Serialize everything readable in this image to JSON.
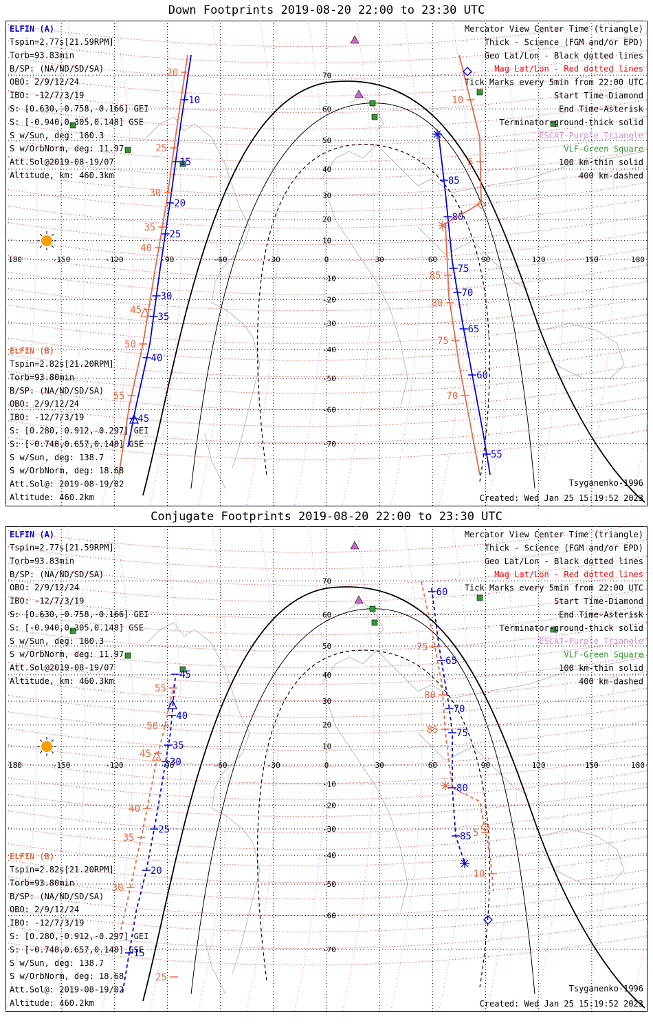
{
  "panels": [
    {
      "title": "Down Footprints 2019-08-20 22:00 to 23:30 UTC",
      "elfin_a": {
        "name": "ELFIN (A)",
        "lines": [
          "Tspin=2.77s[21.59RPM]",
          "Torb=93.83min",
          "B/SP: (NA/ND/SD/SA)",
          "OBO: 2/9/12/24",
          "IBO: -12/7/3/19",
          "S: [0.630,-0.758,-0.166] GEI",
          "S: [-0.940,0.305,0.148] GSE",
          "S w/Sun, deg: 160.3",
          "S w/OrbNorm, deg: 11.97",
          "Att.Sol@2019-08-19/07",
          "Altitude, km: 460.3km"
        ]
      },
      "elfin_b": {
        "name": "ELFIN (B)",
        "lines": [
          "Tspin=2.82s[21.20RPM]",
          "Torb=93.80min",
          "B/SP: (NA/ND/SD/SA)",
          "OBO: 2/9/12/24",
          "IBO: -12/7/3/19",
          "S: [0.280,-0.912,-0.297] GEI",
          "S: [-0.748,0.657,0.148] GSE",
          "S w/Sun, deg: 138.7",
          "S w/OrbNorm, deg: 18.68",
          "Att.Sol@: 2019-08-19/02",
          "Altitude: 460.2km"
        ]
      },
      "legend": [
        {
          "text": "Mercator View Center Time (triangle)",
          "color": "#000000"
        },
        {
          "text": "Thick - Science (FGM and/or EPD)",
          "color": "#000000"
        },
        {
          "text": "Geo Lat/Lon - Black dotted lines",
          "color": "#000000"
        },
        {
          "text": "Mag Lat/Lon - Red dotted lines",
          "color": "#ff0000"
        },
        {
          "text": "Tick Marks every 5min from 22:00 UTC",
          "color": "#000000"
        },
        {
          "text": "Start Time-Diamond",
          "color": "#000000"
        },
        {
          "text": "End Time-Asterisk",
          "color": "#000000"
        },
        {
          "text": "Terminator-ground-thick solid",
          "color": "#000000"
        },
        {
          "text": "ESCAT-Purple Triangle",
          "color": "#dd88dd"
        },
        {
          "text": "VLF-Green Square",
          "color": "#339933"
        },
        {
          "text": "100 km-thin solid",
          "color": "#000000"
        },
        {
          "text": "400 km-dashed",
          "color": "#000000"
        }
      ],
      "model": "Tsyganenko-1996",
      "created": "Created: Wed Jan 25 15:19:52 2023"
    },
    {
      "title": "Conjugate Footprints 2019-08-20 22:00 to 23:30 UTC",
      "elfin_a": {
        "name": "ELFIN (A)",
        "lines": [
          "Tspin=2.77s[21.59RPM]",
          "Torb=93.83min",
          "B/SP: (NA/ND/SD/SA)",
          "OBO: 2/9/12/24",
          "IBO: -12/7/3/19",
          "S: [0.630,-0.758,-0.166] GEI",
          "S: [-0.940,0.305,0.148] GSE",
          "S w/Sun, deg: 160.3",
          "S w/OrbNorm, deg: 11.97",
          "Att.Sol@2019-08-19/07",
          "Altitude, km: 460.3km"
        ]
      },
      "elfin_b": {
        "name": "ELFIN (B)",
        "lines": [
          "Tspin=2.82s[21.20RPM]",
          "Torb=93.80min",
          "B/SP: (NA/ND/SD/SA)",
          "OBO: 2/9/12/24",
          "IBO: -12/7/3/19",
          "S: [0.280,-0.912,-0.297] GEI",
          "S: [-0.748,0.657,0.148] GSE",
          "S w/Sun, deg: 138.7",
          "S w/OrbNorm, deg: 18.68",
          "Att.Sol@: 2019-08-19/02",
          "Altitude: 460.2km"
        ]
      },
      "legend": [
        {
          "text": "Mercator View Center Time (triangle)",
          "color": "#000000"
        },
        {
          "text": "Thick - Science (FGM and/or EPD)",
          "color": "#000000"
        },
        {
          "text": "Geo Lat/Lon - Black dotted lines",
          "color": "#000000"
        },
        {
          "text": "Mag Lat/Lon - Red dotted lines",
          "color": "#ff0000"
        },
        {
          "text": "Tick Marks every 5min from 22:00 UTC",
          "color": "#000000"
        },
        {
          "text": "Start Time-Diamond",
          "color": "#000000"
        },
        {
          "text": "End Time-Asterisk",
          "color": "#000000"
        },
        {
          "text": "Terminator-ground-thick solid",
          "color": "#000000"
        },
        {
          "text": "ESCAT-Purple Triangle",
          "color": "#dd88dd"
        },
        {
          "text": "VLF-Green Square",
          "color": "#339933"
        },
        {
          "text": "100 km-thin solid",
          "color": "#000000"
        },
        {
          "text": "400 km-dashed",
          "color": "#000000"
        }
      ],
      "model": "Tsyganenko-1996",
      "created": "Created: Wed Jan 25 15:19:52 2023"
    }
  ],
  "lon_ticks": [
    "180",
    "-150",
    "-120",
    "-90",
    "-60",
    "-30",
    "0",
    "30",
    "60",
    "90",
    "120",
    "150",
    "180"
  ],
  "lat_ticks": [
    "70",
    "60",
    "50",
    "40",
    "30",
    "20",
    "10",
    "0",
    "-10",
    "-20",
    "-30",
    "-40",
    "-50",
    "-60",
    "-70"
  ],
  "colors": {
    "elfin_a": "#0000dd",
    "elfin_b": "#ee6644",
    "geo_grid": "#000000",
    "mag_grid": "#ee2222",
    "escat": "#cc66cc",
    "vlf": "#339933",
    "sun": "#f5a000",
    "coast": "#bbbbbb"
  },
  "tracks": {
    "down": {
      "a1": {
        "labels": [
          "10",
          "15",
          "20",
          "25",
          "30",
          "35",
          "40",
          "45"
        ]
      },
      "a2": {
        "labels": [
          "85",
          "80",
          "75",
          "70",
          "65",
          "60",
          "55"
        ]
      },
      "b1": {
        "labels": [
          "20",
          "25",
          "30",
          "35",
          "40",
          "45",
          "50",
          "55"
        ]
      },
      "b2": {
        "labels": [
          "10",
          "5",
          "85",
          "80",
          "75",
          "70"
        ]
      }
    },
    "conj": {
      "a1": {
        "labels": [
          "45",
          "40",
          "35",
          "30",
          "25",
          "20",
          "15"
        ]
      },
      "a2": {
        "labels": [
          "60",
          "65",
          "70",
          "75",
          "80",
          "85"
        ]
      },
      "b1": {
        "labels": [
          "55",
          "50",
          "45",
          "40",
          "35",
          "30",
          "25"
        ]
      },
      "b2": {
        "labels": [
          "75",
          "80",
          "85",
          "5",
          "10"
        ]
      }
    }
  }
}
